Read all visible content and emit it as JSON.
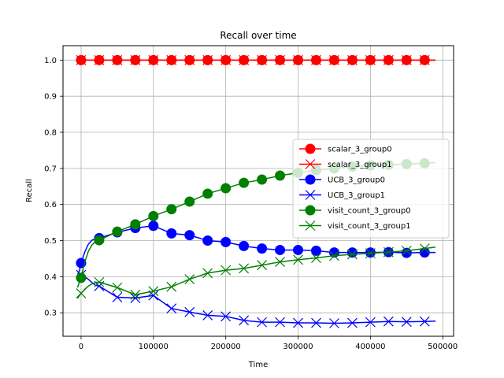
{
  "chart_data": {
    "type": "line",
    "title": "Recall over time",
    "xlabel": "Time",
    "ylabel": "Recall",
    "xlim": [
      -25000,
      515000
    ],
    "ylim": [
      0.235,
      1.04
    ],
    "xticks": [
      0,
      100000,
      200000,
      300000,
      400000,
      500000
    ],
    "yticks": [
      0.3,
      0.4,
      0.5,
      0.6,
      0.7,
      0.8,
      0.9,
      1.0
    ],
    "grid": true,
    "legend_position": "center-right",
    "marker_x": [
      0,
      25000,
      50000,
      75000,
      100000,
      125000,
      150000,
      175000,
      200000,
      225000,
      250000,
      275000,
      300000,
      325000,
      350000,
      375000,
      400000,
      425000,
      450000,
      475000
    ],
    "line_x": [
      -5000,
      0,
      5000,
      10000,
      15000,
      20000,
      25000,
      50000,
      75000,
      100000,
      125000,
      150000,
      175000,
      200000,
      225000,
      250000,
      275000,
      300000,
      325000,
      350000,
      375000,
      400000,
      425000,
      450000,
      475000,
      490000
    ],
    "series": [
      {
        "name": "scalar_3_group0",
        "color": "#ff0000",
        "marker": "circle",
        "values": [
          1.0,
          1.0,
          1.0,
          1.0,
          1.0,
          1.0,
          1.0,
          1.0,
          1.0,
          1.0,
          1.0,
          1.0,
          1.0,
          1.0,
          1.0,
          1.0,
          1.0,
          1.0,
          1.0,
          1.0
        ],
        "line": [
          1.0,
          1.0,
          1.0,
          1.0,
          1.0,
          1.0,
          1.0,
          1.0,
          1.0,
          1.0,
          1.0,
          1.0,
          1.0,
          1.0,
          1.0,
          1.0,
          1.0,
          1.0,
          1.0,
          1.0,
          1.0,
          1.0,
          1.0,
          1.0,
          1.0,
          1.0
        ]
      },
      {
        "name": "scalar_3_group1",
        "color": "#ff0000",
        "marker": "x",
        "values": [
          1.0,
          1.0,
          1.0,
          1.0,
          1.0,
          1.0,
          1.0,
          1.0,
          1.0,
          1.0,
          1.0,
          1.0,
          1.0,
          1.0,
          1.0,
          1.0,
          1.0,
          1.0,
          1.0,
          1.0
        ],
        "line": [
          1.0,
          1.0,
          1.0,
          1.0,
          1.0,
          1.0,
          1.0,
          1.0,
          1.0,
          1.0,
          1.0,
          1.0,
          1.0,
          1.0,
          1.0,
          1.0,
          1.0,
          1.0,
          1.0,
          1.0,
          1.0,
          1.0,
          1.0,
          1.0,
          1.0,
          1.0
        ]
      },
      {
        "name": "UCB_3_group0",
        "color": "#0000ff",
        "marker": "circle",
        "values": [
          0.438,
          0.507,
          0.523,
          0.535,
          0.541,
          0.52,
          0.515,
          0.5,
          0.496,
          0.485,
          0.478,
          0.474,
          0.474,
          0.472,
          0.467,
          0.467,
          0.467,
          0.468,
          0.466,
          0.467
        ],
        "line": [
          0.395,
          0.438,
          0.468,
          0.49,
          0.501,
          0.505,
          0.507,
          0.523,
          0.535,
          0.541,
          0.52,
          0.515,
          0.5,
          0.496,
          0.485,
          0.478,
          0.474,
          0.474,
          0.472,
          0.467,
          0.467,
          0.467,
          0.468,
          0.466,
          0.467,
          0.467
        ]
      },
      {
        "name": "UCB_3_group1",
        "color": "#0000ff",
        "marker": "x",
        "values": [
          0.405,
          0.374,
          0.343,
          0.341,
          0.348,
          0.312,
          0.302,
          0.293,
          0.29,
          0.279,
          0.274,
          0.274,
          0.272,
          0.272,
          0.271,
          0.272,
          0.274,
          0.276,
          0.275,
          0.276
        ],
        "line": [
          0.41,
          0.405,
          0.4,
          0.393,
          0.384,
          0.376,
          0.374,
          0.343,
          0.341,
          0.348,
          0.312,
          0.302,
          0.293,
          0.29,
          0.279,
          0.274,
          0.274,
          0.272,
          0.272,
          0.271,
          0.272,
          0.274,
          0.276,
          0.275,
          0.276,
          0.277
        ]
      },
      {
        "name": "visit_count_3_group0",
        "color": "#008000",
        "marker": "circle",
        "values": [
          0.397,
          0.501,
          0.525,
          0.545,
          0.568,
          0.587,
          0.608,
          0.63,
          0.645,
          0.66,
          0.669,
          0.68,
          0.688,
          0.695,
          0.7,
          0.705,
          0.708,
          0.71,
          0.712,
          0.714
        ],
        "line": [
          0.37,
          0.397,
          0.44,
          0.47,
          0.488,
          0.497,
          0.501,
          0.525,
          0.545,
          0.568,
          0.587,
          0.608,
          0.63,
          0.645,
          0.66,
          0.669,
          0.68,
          0.688,
          0.695,
          0.7,
          0.705,
          0.708,
          0.71,
          0.712,
          0.714,
          0.716
        ]
      },
      {
        "name": "visit_count_3_group1",
        "color": "#008000",
        "marker": "x",
        "values": [
          0.354,
          0.385,
          0.37,
          0.35,
          0.36,
          0.372,
          0.393,
          0.41,
          0.418,
          0.423,
          0.432,
          0.441,
          0.447,
          0.452,
          0.458,
          0.462,
          0.465,
          0.468,
          0.472,
          0.478
        ],
        "line": [
          0.34,
          0.354,
          0.365,
          0.374,
          0.38,
          0.384,
          0.385,
          0.37,
          0.35,
          0.36,
          0.372,
          0.393,
          0.41,
          0.418,
          0.423,
          0.432,
          0.441,
          0.447,
          0.452,
          0.458,
          0.462,
          0.465,
          0.468,
          0.472,
          0.478,
          0.482
        ]
      }
    ]
  }
}
